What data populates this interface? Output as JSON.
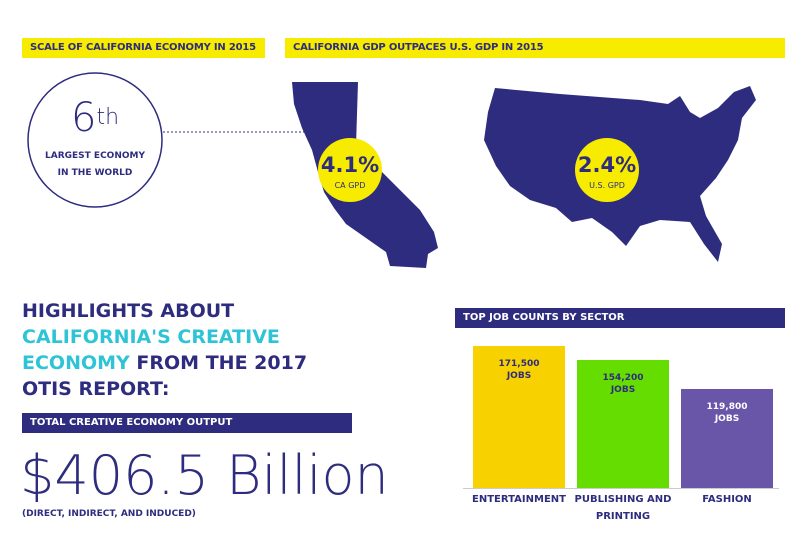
{
  "top_left": {
    "heading": "SCALE OF CALIFORNIA ECONOMY IN 2015",
    "rank": "6",
    "rank_suffix": "th",
    "rank_caption": "LARGEST ECONOMY IN THE WORLD"
  },
  "top_right": {
    "heading": "CALIFORNIA GDP OUTPACES U.S. GDP IN 2015",
    "ca": {
      "value": "4.1%",
      "label": "CA GPD"
    },
    "us": {
      "value": "2.4%",
      "label": "U.S. GPD"
    }
  },
  "headline": [
    "HIGHLIGHTS ABOUT",
    "CALIFORNIA'S CREATIVE ECONOMY",
    "FROM THE 2017 OTIS REPORT:"
  ],
  "output": {
    "heading": "TOTAL CREATIVE ECONOMY OUTPUT",
    "value": "$406.5 Billion",
    "note": "(DIRECT, INDIRECT, AND INDUCED)"
  },
  "chart_data": {
    "type": "bar",
    "title": "TOP JOB COUNTS BY SECTOR",
    "categories": [
      "ENTERTAINMENT",
      "PUBLISHING AND PRINTING",
      "FASHION"
    ],
    "values": [
      171500,
      154200,
      119800
    ],
    "value_labels": [
      "171,500",
      "154,200",
      "119,800"
    ],
    "unit_label": "JOBS",
    "colors": [
      "#f7d100",
      "#66dd00",
      "#6a56a8"
    ]
  }
}
